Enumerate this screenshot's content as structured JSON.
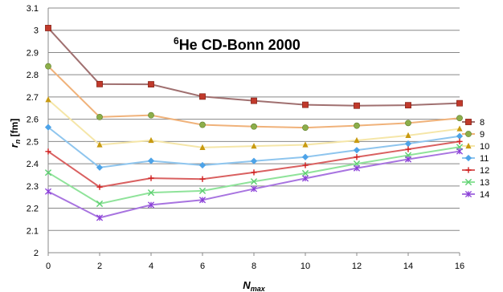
{
  "chart_data": {
    "type": "line",
    "title": {
      "superscript": "6",
      "main": "He  CD-Bonn 2000"
    },
    "xlabel": {
      "main": "N",
      "sub": "max"
    },
    "ylabel": {
      "main": "r",
      "sub": "n",
      "unit": " [fm]"
    },
    "xlim": [
      0,
      16
    ],
    "ylim": [
      2,
      3.1
    ],
    "x_ticks": [
      "0",
      "2",
      "4",
      "6",
      "8",
      "10",
      "12",
      "14",
      "16"
    ],
    "y_ticks": [
      "2",
      "2.1",
      "2.2",
      "2.3",
      "2.4",
      "2.5",
      "2.6",
      "2.7",
      "2.8",
      "2.9",
      "3",
      "3.1"
    ],
    "grid": "horizontal",
    "legend_position": "right",
    "x": [
      0,
      2,
      4,
      6,
      8,
      10,
      12,
      14,
      16
    ],
    "series": [
      {
        "name": "8",
        "marker": "square",
        "color": "#c0392b",
        "line_color": "#a07070",
        "values": [
          3.01,
          2.758,
          2.757,
          2.702,
          2.683,
          2.665,
          2.661,
          2.663,
          2.672
        ]
      },
      {
        "name": "9",
        "marker": "circle",
        "color": "#8cae4a",
        "line_color": "#f0b27a",
        "values": [
          2.838,
          2.61,
          2.618,
          2.575,
          2.567,
          2.562,
          2.571,
          2.583,
          2.605
        ]
      },
      {
        "name": "10",
        "marker": "triangle",
        "color": "#c89a10",
        "line_color": "#f5e6a8",
        "values": [
          2.688,
          2.485,
          2.505,
          2.473,
          2.479,
          2.485,
          2.505,
          2.527,
          2.557
        ]
      },
      {
        "name": "11",
        "marker": "diamond",
        "color": "#4da3e8",
        "line_color": "#8ec5ee",
        "values": [
          2.564,
          2.383,
          2.413,
          2.393,
          2.412,
          2.43,
          2.461,
          2.49,
          2.524
        ]
      },
      {
        "name": "12",
        "marker": "plus",
        "color": "#d02020",
        "line_color": "#d96060",
        "values": [
          2.455,
          2.295,
          2.335,
          2.331,
          2.361,
          2.393,
          2.43,
          2.465,
          2.5
        ]
      },
      {
        "name": "13",
        "marker": "x",
        "color": "#5ccf70",
        "line_color": "#8fe39a",
        "values": [
          2.36,
          2.22,
          2.27,
          2.278,
          2.32,
          2.357,
          2.4,
          2.438,
          2.475
        ]
      },
      {
        "name": "14",
        "marker": "star",
        "color": "#8a3ed8",
        "line_color": "#a874e0",
        "values": [
          2.275,
          2.157,
          2.215,
          2.237,
          2.287,
          2.334,
          2.38,
          2.42,
          2.456
        ]
      }
    ]
  }
}
